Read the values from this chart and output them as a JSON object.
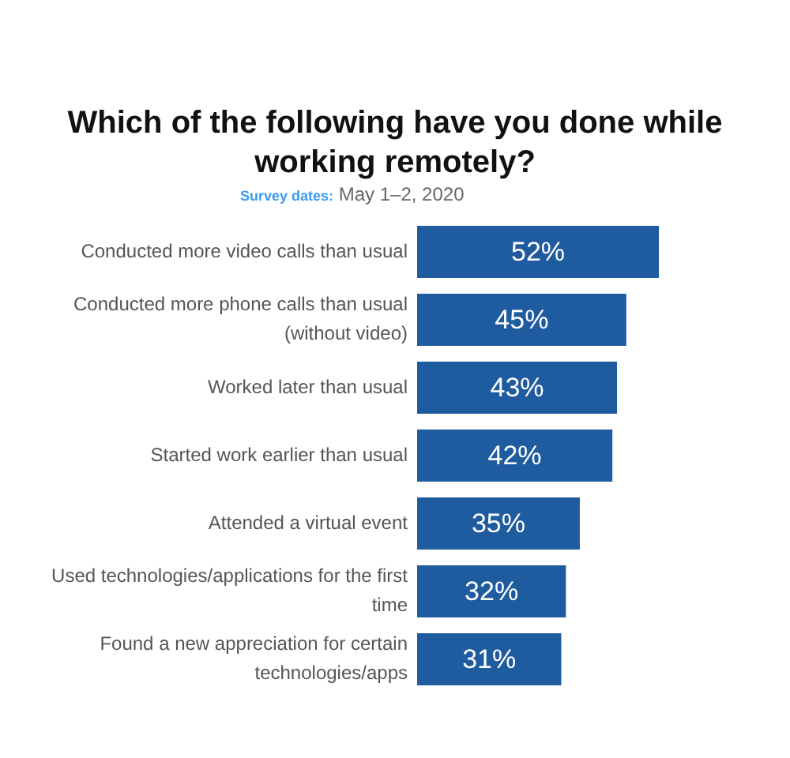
{
  "chart_data": {
    "type": "bar",
    "orientation": "horizontal",
    "title": "Which of the following have you done while working remotely?",
    "subtitle": "Survey dates: May 1–2, 2020",
    "categories": [
      "Conducted more video calls than usual",
      "Conducted more phone calls than usual (without video)",
      "Worked later than usual",
      "Started work earlier than usual",
      "Attended a virtual event",
      "Used technologies/applications for the first time",
      "Found a new appreciation for certain technologies/apps"
    ],
    "values": [
      52,
      45,
      43,
      42,
      35,
      32,
      31
    ],
    "color": "#1f5b9f",
    "value_labels": [
      "52%",
      "45%",
      "43%",
      "42%",
      "35%",
      "32%",
      "31%"
    ],
    "grid": false,
    "legend": false,
    "tick_labels": "y"
  }
}
